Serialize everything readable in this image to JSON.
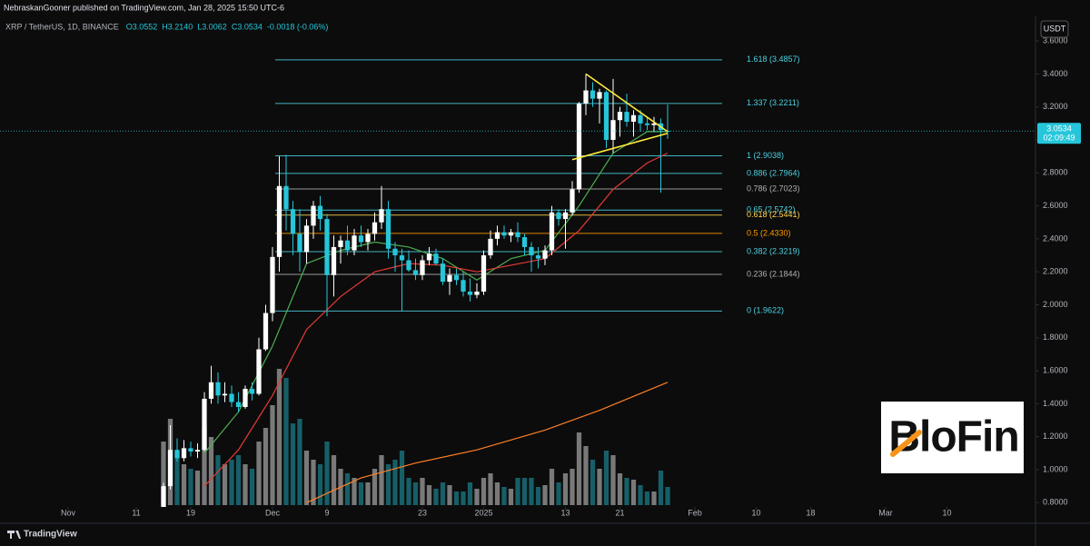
{
  "chart_data": {
    "type": "candlestick",
    "header": "NebraskanGooner published on TradingView.com, Jan 28, 2025 15:50 UTC-6",
    "legend": {
      "symbol": "XRP / TetherUS, 1D, BINANCE",
      "values": [
        "O3.0552",
        "H3.2140",
        "L3.0062",
        "C3.0534",
        "-0.0018 (-0.06%)"
      ]
    },
    "currency": "USDT",
    "footer": "TradingView",
    "logo": "BloFin",
    "up_color": "#ffffff",
    "down_color": "#26c6da",
    "x": [
      "2024-11-15",
      "2024-11-16",
      "2024-11-17",
      "2024-11-18",
      "2024-11-19",
      "2024-11-20",
      "2024-11-21",
      "2024-11-22",
      "2024-11-23",
      "2024-11-24",
      "2024-11-25",
      "2024-11-26",
      "2024-11-27",
      "2024-11-28",
      "2024-11-29",
      "2024-11-30",
      "2024-12-01",
      "2024-12-02",
      "2024-12-03",
      "2024-12-04",
      "2024-12-05",
      "2024-12-06",
      "2024-12-07",
      "2024-12-08",
      "2024-12-09",
      "2024-12-10",
      "2024-12-11",
      "2024-12-12",
      "2024-12-13",
      "2024-12-14",
      "2024-12-15",
      "2024-12-16",
      "2024-12-17",
      "2024-12-18",
      "2024-12-19",
      "2024-12-20",
      "2024-12-21",
      "2024-12-22",
      "2024-12-23",
      "2024-12-24",
      "2024-12-25",
      "2024-12-26",
      "2024-12-27",
      "2024-12-28",
      "2024-12-29",
      "2024-12-30",
      "2024-12-31",
      "2025-01-01",
      "2025-01-02",
      "2025-01-03",
      "2025-01-04",
      "2025-01-05",
      "2025-01-06",
      "2025-01-07",
      "2025-01-08",
      "2025-01-09",
      "2025-01-10",
      "2025-01-11",
      "2025-01-12",
      "2025-01-13",
      "2025-01-14",
      "2025-01-15",
      "2025-01-16",
      "2025-01-17",
      "2025-01-18",
      "2025-01-19",
      "2025-01-20",
      "2025-01-21",
      "2025-01-22",
      "2025-01-23",
      "2025-01-24",
      "2025-01-25",
      "2025-01-26",
      "2025-01-27",
      "2025-01-28"
    ],
    "open": [
      0.76,
      0.9,
      1.12,
      1.07,
      1.13,
      1.11,
      1.12,
      1.43,
      1.53,
      1.45,
      1.46,
      1.41,
      1.38,
      1.49,
      1.46,
      1.73,
      1.95,
      2.29,
      2.72,
      2.58,
      2.43,
      2.32,
      2.48,
      2.6,
      2.52,
      2.18,
      2.35,
      2.39,
      2.33,
      2.42,
      2.38,
      2.43,
      2.5,
      2.58,
      2.34,
      2.3,
      2.27,
      2.21,
      2.18,
      2.27,
      2.31,
      2.25,
      2.14,
      2.18,
      2.15,
      2.08,
      2.06,
      2.08,
      2.3,
      2.4,
      2.44,
      2.42,
      2.44,
      2.41,
      2.35,
      2.3,
      2.28,
      2.33,
      2.56,
      2.52,
      2.56,
      2.7,
      3.22,
      3.3,
      3.25,
      3.29,
      3.0,
      3.12,
      3.17,
      3.11,
      3.15,
      3.1,
      3.09,
      3.1,
      3.0552
    ],
    "high": [
      0.92,
      1.27,
      1.19,
      1.18,
      1.17,
      1.16,
      1.47,
      1.63,
      1.59,
      1.53,
      1.51,
      1.47,
      1.51,
      1.53,
      1.8,
      2.0,
      2.35,
      2.9,
      2.91,
      2.63,
      2.58,
      2.52,
      2.63,
      2.66,
      2.55,
      2.42,
      2.42,
      2.48,
      2.46,
      2.48,
      2.46,
      2.56,
      2.72,
      2.63,
      2.38,
      2.34,
      2.33,
      2.28,
      2.3,
      2.35,
      2.34,
      2.28,
      2.22,
      2.22,
      2.2,
      2.16,
      2.13,
      2.33,
      2.45,
      2.48,
      2.48,
      2.46,
      2.5,
      2.43,
      2.38,
      2.35,
      2.36,
      2.6,
      2.58,
      2.58,
      2.75,
      3.23,
      3.4,
      3.35,
      3.31,
      3.3,
      3.37,
      3.2,
      3.28,
      3.18,
      3.18,
      3.14,
      3.14,
      3.13,
      3.214
    ],
    "low": [
      0.74,
      0.88,
      1.05,
      1.05,
      1.08,
      1.07,
      1.11,
      1.4,
      1.4,
      1.41,
      1.38,
      1.35,
      1.37,
      1.42,
      1.45,
      1.72,
      1.9,
      2.2,
      2.45,
      2.3,
      2.2,
      2.25,
      2.4,
      2.45,
      1.93,
      2.05,
      2.25,
      2.3,
      2.3,
      2.35,
      2.33,
      2.39,
      2.46,
      2.28,
      2.2,
      1.96,
      2.2,
      2.15,
      2.15,
      2.24,
      2.24,
      2.12,
      2.06,
      2.12,
      2.05,
      2.02,
      2.04,
      2.06,
      2.28,
      2.36,
      2.4,
      2.38,
      2.38,
      2.3,
      2.2,
      2.22,
      2.24,
      2.3,
      2.48,
      2.34,
      2.54,
      2.68,
      3.15,
      3.2,
      3.1,
      2.95,
      2.92,
      3.02,
      3.08,
      3.02,
      3.05,
      3.06,
      3.05,
      2.68,
      3.0062
    ],
    "close": [
      0.9,
      1.12,
      1.07,
      1.13,
      1.11,
      1.12,
      1.43,
      1.53,
      1.45,
      1.46,
      1.41,
      1.38,
      1.49,
      1.46,
      1.73,
      1.95,
      2.29,
      2.72,
      2.58,
      2.43,
      2.32,
      2.48,
      2.6,
      2.52,
      2.18,
      2.35,
      2.39,
      2.33,
      2.42,
      2.38,
      2.43,
      2.5,
      2.58,
      2.34,
      2.3,
      2.27,
      2.21,
      2.18,
      2.27,
      2.31,
      2.25,
      2.14,
      2.18,
      2.15,
      2.08,
      2.06,
      2.08,
      2.3,
      2.4,
      2.44,
      2.42,
      2.44,
      2.41,
      2.35,
      2.3,
      2.28,
      2.33,
      2.56,
      2.52,
      2.56,
      2.7,
      3.22,
      3.3,
      3.25,
      3.29,
      3.0,
      3.12,
      3.17,
      3.11,
      3.15,
      3.1,
      3.09,
      3.1,
      3.06,
      3.0534
    ],
    "volume": [
      70,
      95,
      60,
      45,
      40,
      38,
      85,
      75,
      55,
      45,
      50,
      55,
      45,
      40,
      70,
      85,
      110,
      150,
      140,
      90,
      95,
      60,
      50,
      45,
      70,
      55,
      40,
      35,
      30,
      25,
      25,
      40,
      55,
      45,
      50,
      60,
      30,
      25,
      30,
      22,
      18,
      25,
      22,
      15,
      15,
      25,
      18,
      30,
      35,
      25,
      20,
      18,
      30,
      30,
      30,
      20,
      22,
      40,
      25,
      35,
      40,
      80,
      65,
      50,
      40,
      60,
      55,
      35,
      30,
      28,
      22,
      15,
      15,
      38,
      20
    ],
    "overlays": [
      {
        "color": "#4caf50",
        "x": [
          "2024-11-21",
          "2024-11-26",
          "2024-12-01",
          "2024-12-06",
          "2024-12-11",
          "2024-12-16",
          "2024-12-21",
          "2024-12-26",
          "2024-12-31",
          "2025-01-05",
          "2025-01-10",
          "2025-01-15",
          "2025-01-20",
          "2025-01-25",
          "2025-01-28"
        ],
        "values": [
          1.1,
          1.35,
          1.75,
          2.25,
          2.33,
          2.38,
          2.35,
          2.28,
          2.15,
          2.28,
          2.33,
          2.6,
          2.92,
          3.05,
          3.05
        ]
      },
      {
        "color": "#e53935",
        "x": [
          "2024-11-21",
          "2024-11-26",
          "2024-12-01",
          "2024-12-06",
          "2024-12-11",
          "2024-12-16",
          "2024-12-21",
          "2024-12-26",
          "2024-12-31",
          "2025-01-05",
          "2025-01-10",
          "2025-01-15",
          "2025-01-20",
          "2025-01-25",
          "2025-01-28"
        ],
        "values": [
          0.9,
          1.12,
          1.45,
          1.85,
          2.05,
          2.2,
          2.25,
          2.24,
          2.2,
          2.24,
          2.28,
          2.45,
          2.7,
          2.86,
          2.92
        ]
      },
      {
        "color": "#ff7f27",
        "x": [
          "2024-12-06",
          "2024-12-14",
          "2024-12-22",
          "2024-12-31",
          "2025-01-10",
          "2025-01-18",
          "2025-01-28"
        ],
        "values": [
          0.8,
          0.95,
          1.04,
          1.12,
          1.24,
          1.36,
          1.53
        ]
      }
    ],
    "trendlines": [
      {
        "color": "#ffeb3b",
        "x": [
          "2025-01-16",
          "2025-01-28"
        ],
        "values": [
          3.4,
          3.05
        ]
      },
      {
        "color": "#ffeb3b",
        "x": [
          "2025-01-14",
          "2025-01-28"
        ],
        "values": [
          2.88,
          3.04
        ]
      }
    ],
    "fib_levels": [
      {
        "label": "1.618 (3.4857)",
        "value": 3.4857,
        "color": "#4dd0e1"
      },
      {
        "label": "1.337 (3.2211)",
        "value": 3.2211,
        "color": "#4dd0e1"
      },
      {
        "label": "1 (2.9038)",
        "value": 2.9038,
        "color": "#4dd0e1"
      },
      {
        "label": "0.886 (2.7964)",
        "value": 2.7964,
        "color": "#4dd0e1"
      },
      {
        "label": "0.786 (2.7023)",
        "value": 2.7023,
        "color": "#b0b0b0"
      },
      {
        "label": "0.65 (2.5742)",
        "value": 2.5742,
        "color": "#4dd0e1"
      },
      {
        "label": "0.618 (2.5441)",
        "value": 2.5441,
        "color": "#ffd54f"
      },
      {
        "label": "0.5 (2.4330)",
        "value": 2.433,
        "color": "#ff9800"
      },
      {
        "label": "0.382 (2.3219)",
        "value": 2.3219,
        "color": "#4dd0e1"
      },
      {
        "label": "0.236 (2.1844)",
        "value": 2.1844,
        "color": "#b0b0b0"
      },
      {
        "label": "0 (1.9622)",
        "value": 1.9622,
        "color": "#4dd0e1"
      }
    ],
    "last_price": {
      "value": 3.0534,
      "countdown": "02:09:49",
      "color": "#26c6da"
    },
    "xlim": [
      "2024-10-22",
      "2025-03-23"
    ],
    "xticks": [
      {
        "value": "2024-11-01",
        "label": "Nov"
      },
      {
        "value": "2024-11-11",
        "label": "11"
      },
      {
        "value": "2024-11-19",
        "label": "19"
      },
      {
        "value": "2024-12-01",
        "label": "Dec"
      },
      {
        "value": "2024-12-09",
        "label": "9"
      },
      {
        "value": "2024-12-23",
        "label": "23"
      },
      {
        "value": "2025-01-01",
        "label": "2025"
      },
      {
        "value": "2025-01-13",
        "label": "13"
      },
      {
        "value": "2025-01-21",
        "label": "21"
      },
      {
        "value": "2025-02-01",
        "label": "Feb"
      },
      {
        "value": "2025-02-10",
        "label": "10"
      },
      {
        "value": "2025-02-18",
        "label": "18"
      },
      {
        "value": "2025-03-01",
        "label": "Mar"
      },
      {
        "value": "2025-03-10",
        "label": "10"
      }
    ],
    "ylim": [
      0.763,
      3.628
    ],
    "yticks": [
      {
        "value": 0.8,
        "label": "0.8000"
      },
      {
        "value": 1.0,
        "label": "1.0000"
      },
      {
        "value": 1.2,
        "label": "1.2000"
      },
      {
        "value": 1.4,
        "label": "1.4000"
      },
      {
        "value": 1.6,
        "label": "1.6000"
      },
      {
        "value": 1.8,
        "label": "1.8000"
      },
      {
        "value": 2.0,
        "label": "2.0000"
      },
      {
        "value": 2.2,
        "label": "2.2000"
      },
      {
        "value": 2.4,
        "label": "2.4000"
      },
      {
        "value": 2.6,
        "label": "2.6000"
      },
      {
        "value": 2.8,
        "label": "2.8000"
      },
      {
        "value": 3.0,
        "label": "3.0000"
      },
      {
        "value": 3.2,
        "label": "3.2000"
      },
      {
        "value": 3.4,
        "label": "3.4000"
      },
      {
        "value": 3.6,
        "label": "3.6000"
      }
    ]
  }
}
